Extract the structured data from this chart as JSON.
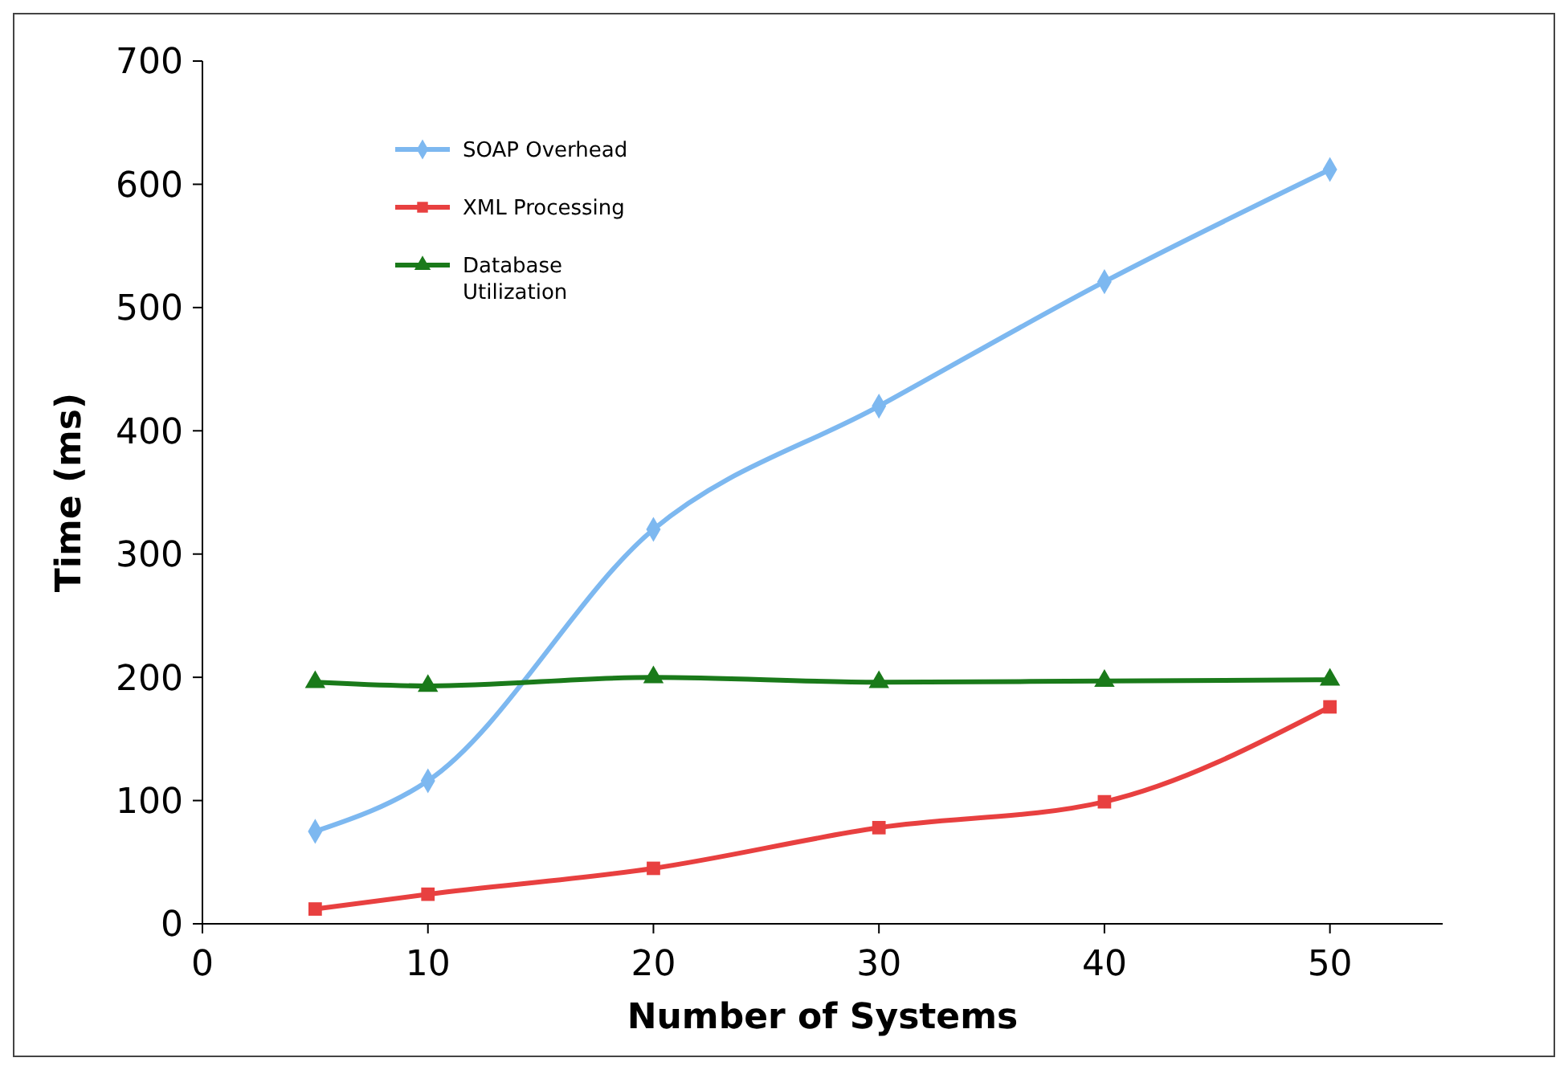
{
  "chart_data": {
    "type": "line",
    "xlabel": "Number of Systems",
    "ylabel": "Time (ms)",
    "x": [
      5,
      10,
      20,
      30,
      40,
      50
    ],
    "xlim": [
      0,
      55
    ],
    "xticks": [
      0,
      10,
      20,
      30,
      40,
      50
    ],
    "ylim": [
      0,
      700
    ],
    "yticks": [
      0,
      100,
      200,
      300,
      400,
      500,
      600,
      700
    ],
    "grid": false,
    "legend": "top left",
    "line_style": "solid",
    "series": [
      {
        "name": "SOAP Overhead",
        "color": "#7db8f0",
        "marker": "diamond",
        "values": [
          75,
          116,
          320,
          420,
          521,
          612
        ]
      },
      {
        "name": "XML Processing",
        "color": "#e84040",
        "marker": "square",
        "values": [
          12,
          24,
          45,
          78,
          99,
          176
        ]
      },
      {
        "name": "Database Utilization",
        "color": "#1a7a1a",
        "marker": "triangle",
        "values": [
          196,
          193,
          200,
          196,
          197,
          198
        ]
      }
    ]
  }
}
